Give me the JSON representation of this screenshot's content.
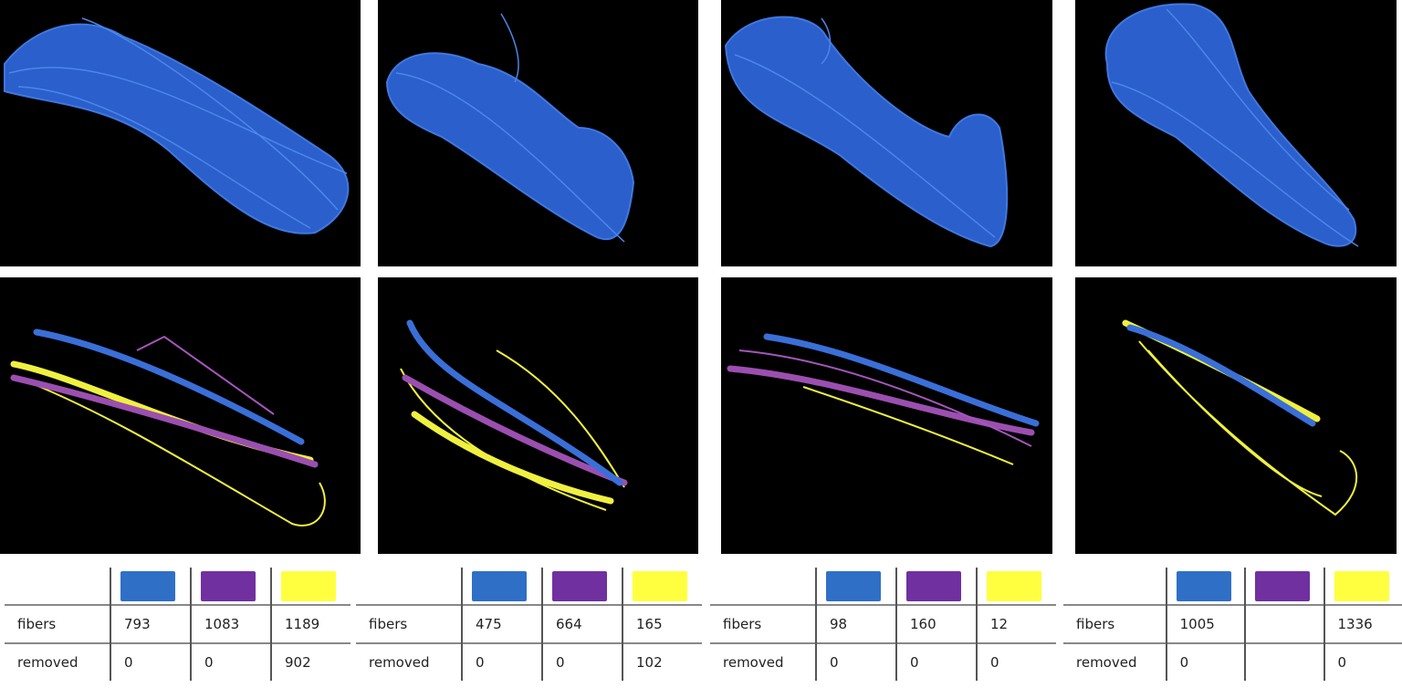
{
  "panels": [
    {
      "table": {
        "rows": [
          {
            "label": "fibers",
            "cells": [
              793,
              1083,
              1189
            ]
          },
          {
            "label": "removed",
            "cells": [
              0,
              0,
              902
            ]
          }
        ]
      }
    },
    {
      "table": {
        "rows": [
          {
            "label": "fibers",
            "cells": [
              475,
              664,
              165
            ]
          },
          {
            "label": "removed",
            "cells": [
              0,
              0,
              102
            ]
          }
        ]
      }
    },
    {
      "table": {
        "rows": [
          {
            "label": "fibers",
            "cells": [
              98,
              160,
              12
            ]
          },
          {
            "label": "removed",
            "cells": [
              0,
              0,
              0
            ]
          }
        ]
      }
    },
    {
      "table": {
        "rows": [
          {
            "label": "fibers",
            "cells": [
              1005,
              null,
              1336
            ]
          },
          {
            "label": "removed",
            "cells": [
              0,
              null,
              0
            ]
          }
        ]
      }
    }
  ]
}
